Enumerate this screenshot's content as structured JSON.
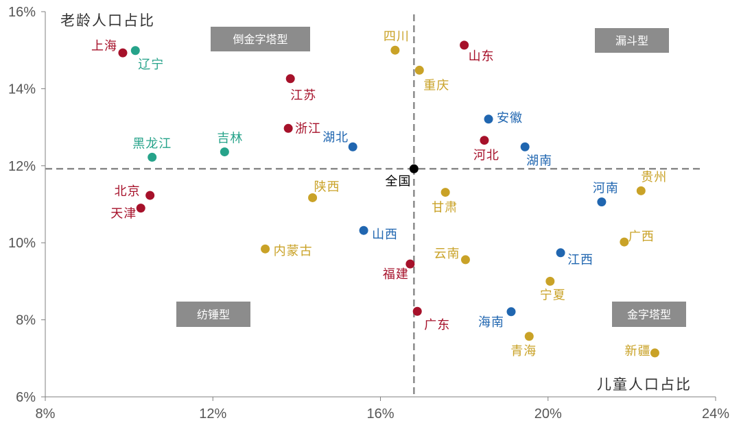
{
  "chart_data": {
    "type": "scatter",
    "title": "",
    "xlabel": "儿童人口占比",
    "ylabel": "老龄人口占比",
    "xlim": [
      0.08,
      0.24
    ],
    "ylim": [
      0.06,
      0.16
    ],
    "xticks": [
      "8%",
      "12%",
      "16%",
      "20%",
      "24%"
    ],
    "yticks": [
      "6%",
      "8%",
      "10%",
      "12%",
      "14%",
      "16%"
    ],
    "colors": {
      "red": "#A6112A",
      "teal": "#26A38A",
      "blue": "#2066B0",
      "gold": "#C9A227",
      "black": "#000000",
      "quadrant_box": "#8C8C8C",
      "ref_line": "#8A8A8A"
    },
    "reference": {
      "x": 0.168,
      "y": 0.1192
    },
    "quadrants": [
      "倒金字塔型",
      "漏斗型",
      "纺锤型",
      "金字塔型"
    ],
    "points": [
      {
        "name": "上海",
        "x": 0.0985,
        "y": 0.1493,
        "color": "red"
      },
      {
        "name": "辽宁",
        "x": 0.1015,
        "y": 0.1499,
        "color": "teal"
      },
      {
        "name": "江苏",
        "x": 0.1385,
        "y": 0.1426,
        "color": "red"
      },
      {
        "name": "浙江",
        "x": 0.138,
        "y": 0.1297,
        "color": "red"
      },
      {
        "name": "黑龙江",
        "x": 0.1055,
        "y": 0.1222,
        "color": "teal"
      },
      {
        "name": "吉林",
        "x": 0.1228,
        "y": 0.1236,
        "color": "teal"
      },
      {
        "name": "湖北",
        "x": 0.1534,
        "y": 0.1249,
        "color": "blue"
      },
      {
        "name": "四川",
        "x": 0.1635,
        "y": 0.15,
        "color": "gold"
      },
      {
        "name": "重庆",
        "x": 0.1693,
        "y": 0.1448,
        "color": "gold"
      },
      {
        "name": "山东",
        "x": 0.18,
        "y": 0.1513,
        "color": "red"
      },
      {
        "name": "安徽",
        "x": 0.1858,
        "y": 0.1321,
        "color": "blue"
      },
      {
        "name": "河北",
        "x": 0.1848,
        "y": 0.1266,
        "color": "red"
      },
      {
        "name": "湖南",
        "x": 0.1945,
        "y": 0.1249,
        "color": "blue"
      },
      {
        "name": "全国",
        "x": 0.168,
        "y": 0.1192,
        "color": "black"
      },
      {
        "name": "北京",
        "x": 0.105,
        "y": 0.1123,
        "color": "red"
      },
      {
        "name": "天津",
        "x": 0.1028,
        "y": 0.109,
        "color": "red"
      },
      {
        "name": "陕西",
        "x": 0.1438,
        "y": 0.1117,
        "color": "gold"
      },
      {
        "name": "甘肃",
        "x": 0.1755,
        "y": 0.1131,
        "color": "gold"
      },
      {
        "name": "河南",
        "x": 0.2128,
        "y": 0.1106,
        "color": "blue"
      },
      {
        "name": "贵州",
        "x": 0.2222,
        "y": 0.1135,
        "color": "gold"
      },
      {
        "name": "山西",
        "x": 0.156,
        "y": 0.1032,
        "color": "blue"
      },
      {
        "name": "内蒙古",
        "x": 0.1325,
        "y": 0.0984,
        "color": "gold"
      },
      {
        "name": "广西",
        "x": 0.2182,
        "y": 0.1002,
        "color": "gold"
      },
      {
        "name": "云南",
        "x": 0.1803,
        "y": 0.0956,
        "color": "gold"
      },
      {
        "name": "江西",
        "x": 0.203,
        "y": 0.0974,
        "color": "blue"
      },
      {
        "name": "福建",
        "x": 0.1671,
        "y": 0.0945,
        "color": "red"
      },
      {
        "name": "宁夏",
        "x": 0.2005,
        "y": 0.09,
        "color": "gold"
      },
      {
        "name": "广东",
        "x": 0.1688,
        "y": 0.0822,
        "color": "red"
      },
      {
        "name": "海南",
        "x": 0.1912,
        "y": 0.0821,
        "color": "blue"
      },
      {
        "name": "青海",
        "x": 0.1955,
        "y": 0.0757,
        "color": "gold"
      },
      {
        "name": "新疆",
        "x": 0.2255,
        "y": 0.0714,
        "color": "gold"
      }
    ]
  }
}
